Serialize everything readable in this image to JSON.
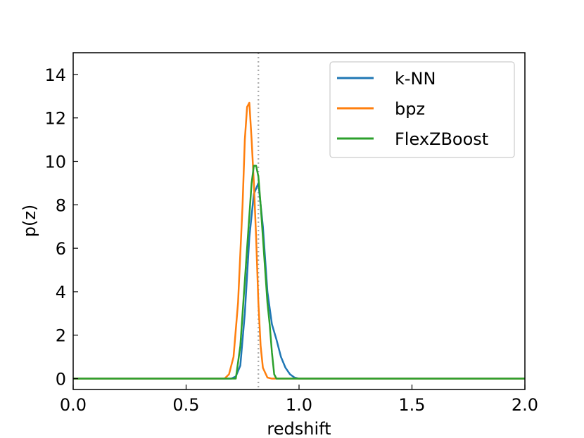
{
  "chart_data": {
    "type": "line",
    "title": "",
    "xlabel": "redshift",
    "ylabel": "p(z)",
    "xlim": [
      0.0,
      2.0
    ],
    "ylim": [
      -0.5,
      15.0
    ],
    "xticks": [
      0.0,
      0.5,
      1.0,
      1.5,
      2.0
    ],
    "xtick_labels": [
      "0.0",
      "0.5",
      "1.0",
      "1.5",
      "2.0"
    ],
    "yticks": [
      0,
      2,
      4,
      6,
      8,
      10,
      12,
      14
    ],
    "ytick_labels": [
      "0",
      "2",
      "4",
      "6",
      "8",
      "10",
      "12",
      "14"
    ],
    "reference_line": {
      "x": 0.82,
      "style": "dotted",
      "color": "#aaaaaa"
    },
    "grid": false,
    "legend": {
      "placement": "top-right"
    },
    "series": [
      {
        "name": "k-NN",
        "color": "#1f77b4",
        "x": [
          0.0,
          0.7,
          0.72,
          0.74,
          0.76,
          0.78,
          0.8,
          0.82,
          0.84,
          0.86,
          0.88,
          0.9,
          0.92,
          0.94,
          0.96,
          0.98,
          1.0,
          1.02,
          2.0
        ],
        "y": [
          0.0,
          0.0,
          0.1,
          0.6,
          3.0,
          6.5,
          8.5,
          9.0,
          7.0,
          4.0,
          2.5,
          1.8,
          1.0,
          0.5,
          0.2,
          0.05,
          0.0,
          0.0,
          0.0
        ]
      },
      {
        "name": "bpz",
        "color": "#ff7f0e",
        "x": [
          0.0,
          0.67,
          0.69,
          0.71,
          0.73,
          0.75,
          0.76,
          0.77,
          0.78,
          0.79,
          0.8,
          0.81,
          0.82,
          0.83,
          0.84,
          0.86,
          0.88,
          2.0
        ],
        "y": [
          0.0,
          0.0,
          0.2,
          1.0,
          3.5,
          8.0,
          11.0,
          12.5,
          12.7,
          11.0,
          9.0,
          6.5,
          3.5,
          1.5,
          0.5,
          0.05,
          0.0,
          0.0
        ]
      },
      {
        "name": "FlexZBoost",
        "color": "#2ca02c",
        "x": [
          0.0,
          0.72,
          0.74,
          0.76,
          0.78,
          0.79,
          0.8,
          0.81,
          0.82,
          0.83,
          0.84,
          0.85,
          0.86,
          0.87,
          0.88,
          0.89,
          0.9,
          2.0
        ],
        "y": [
          0.0,
          0.0,
          1.5,
          4.5,
          7.5,
          9.0,
          9.8,
          9.8,
          9.3,
          8.0,
          6.5,
          5.0,
          3.5,
          2.5,
          1.2,
          0.2,
          0.0,
          0.0
        ]
      }
    ]
  }
}
